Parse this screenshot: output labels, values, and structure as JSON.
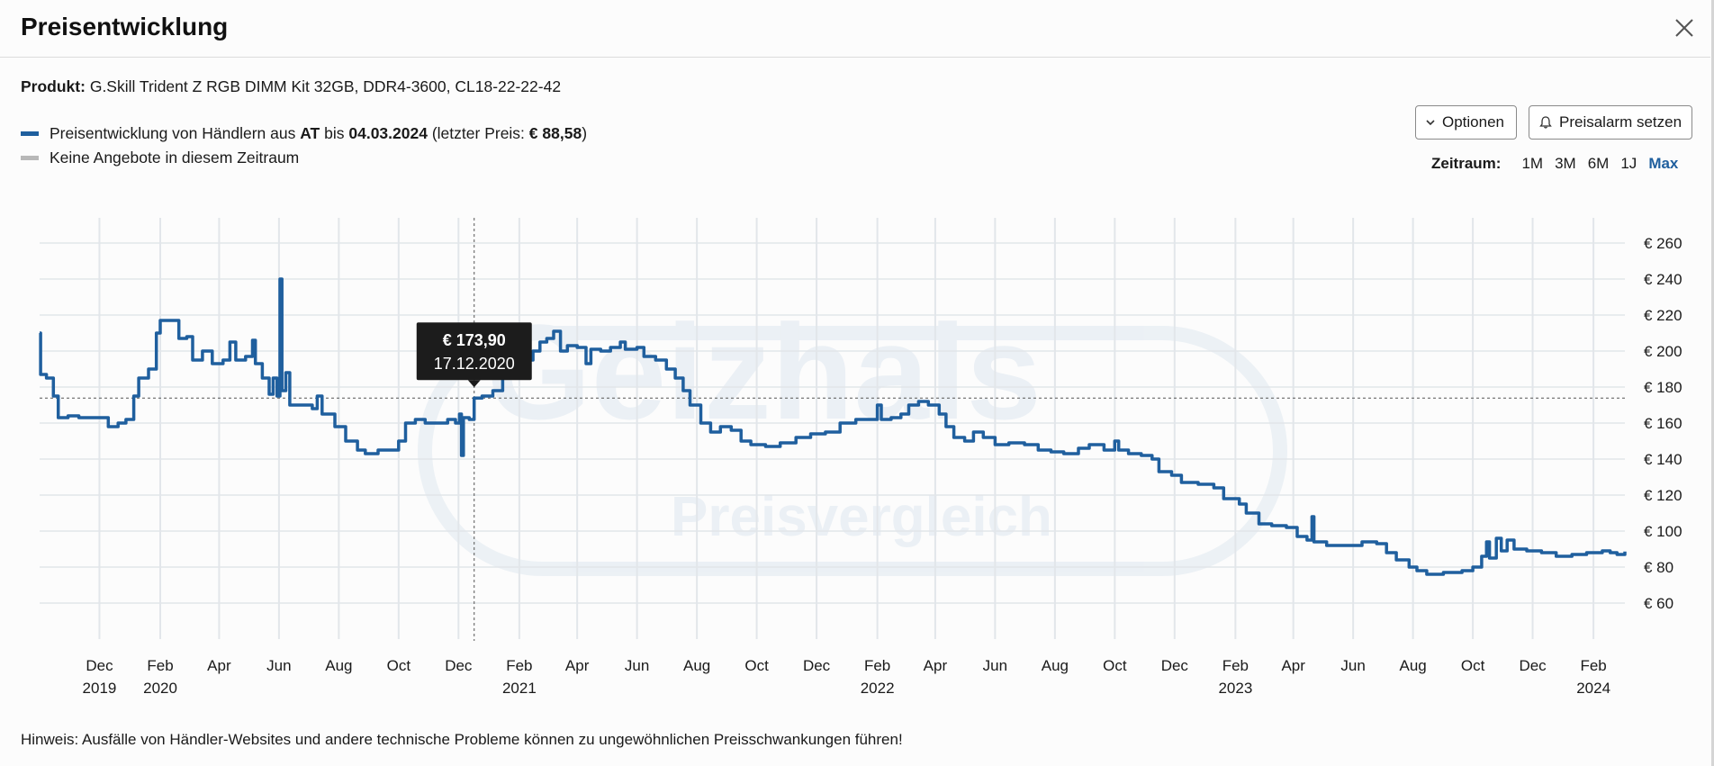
{
  "header": {
    "title": "Preisentwicklung"
  },
  "product": {
    "label": "Produkt:",
    "name": "G.Skill Trident Z RGB DIMM Kit 32GB, DDR4-3600, CL18-22-22-42"
  },
  "legend": {
    "line1_prefix": "Preisentwicklung von Händlern aus ",
    "country": "AT",
    "line1_mid": " bis ",
    "date": "04.03.2024",
    "line1_paren_open": " (letzter Preis: ",
    "last_price": "€ 88,58",
    "line1_paren_close": ")",
    "line2": "Keine Angebote in diesem Zeitraum",
    "colors": {
      "price_line": "#1f5f9e",
      "no_offers": "#b8b8b8"
    }
  },
  "buttons": {
    "options_label": "Optionen",
    "alarm_label": "Preisalarm setzen"
  },
  "range": {
    "label": "Zeitraum:",
    "options": [
      "1M",
      "3M",
      "6M",
      "1J",
      "Max"
    ],
    "active": "Max"
  },
  "tooltip": {
    "price": "€ 173,90",
    "date": "17.12.2020"
  },
  "watermark": {
    "brand": "Geizhals",
    "sub": "Preisvergleich"
  },
  "hint": "Hinweis: Ausfälle von Händler-Websites und andere technische Probleme können zu ungewöhnlichen Preisschwankungen führen!",
  "chart_data": {
    "type": "line",
    "series": [
      {
        "values": [
          [
            "2019-10-01",
            210
          ],
          [
            "2019-10-02",
            187
          ],
          [
            "2019-10-08",
            185
          ],
          [
            "2019-10-15",
            175
          ],
          [
            "2019-10-20",
            163
          ],
          [
            "2019-10-30",
            164
          ],
          [
            "2019-11-10",
            163
          ],
          [
            "2019-11-25",
            163
          ],
          [
            "2019-12-05",
            163
          ],
          [
            "2019-12-10",
            158
          ],
          [
            "2019-12-20",
            160
          ],
          [
            "2019-12-28",
            162
          ],
          [
            "2020-01-05",
            175
          ],
          [
            "2020-01-10",
            185
          ],
          [
            "2020-01-20",
            190
          ],
          [
            "2020-01-28",
            210
          ],
          [
            "2020-02-01",
            217
          ],
          [
            "2020-02-12",
            217
          ],
          [
            "2020-02-20",
            207
          ],
          [
            "2020-02-28",
            208
          ],
          [
            "2020-03-05",
            195
          ],
          [
            "2020-03-15",
            200
          ],
          [
            "2020-03-25",
            193
          ],
          [
            "2020-04-05",
            195
          ],
          [
            "2020-04-12",
            205
          ],
          [
            "2020-04-18",
            195
          ],
          [
            "2020-04-28",
            197
          ],
          [
            "2020-05-05",
            206
          ],
          [
            "2020-05-08",
            193
          ],
          [
            "2020-05-15",
            185
          ],
          [
            "2020-05-22",
            176
          ],
          [
            "2020-05-26",
            185
          ],
          [
            "2020-05-30",
            175
          ],
          [
            "2020-06-02",
            240
          ],
          [
            "2020-06-04",
            178
          ],
          [
            "2020-06-08",
            188
          ],
          [
            "2020-06-12",
            170
          ],
          [
            "2020-06-25",
            170
          ],
          [
            "2020-07-05",
            168
          ],
          [
            "2020-07-10",
            175
          ],
          [
            "2020-07-15",
            165
          ],
          [
            "2020-07-28",
            158
          ],
          [
            "2020-08-08",
            150
          ],
          [
            "2020-08-20",
            145
          ],
          [
            "2020-08-28",
            143
          ],
          [
            "2020-09-10",
            145
          ],
          [
            "2020-09-25",
            145
          ],
          [
            "2020-10-01",
            150
          ],
          [
            "2020-10-08",
            160
          ],
          [
            "2020-10-18",
            162
          ],
          [
            "2020-10-28",
            160
          ],
          [
            "2020-11-10",
            160
          ],
          [
            "2020-11-20",
            162
          ],
          [
            "2020-11-28",
            160
          ],
          [
            "2020-12-02",
            165
          ],
          [
            "2020-12-04",
            142
          ],
          [
            "2020-12-06",
            163
          ],
          [
            "2020-12-12",
            162
          ],
          [
            "2020-12-17",
            173.9
          ],
          [
            "2020-12-25",
            175
          ],
          [
            "2021-01-05",
            178
          ],
          [
            "2021-01-15",
            185
          ],
          [
            "2021-01-25",
            190
          ],
          [
            "2021-02-05",
            195
          ],
          [
            "2021-02-15",
            200
          ],
          [
            "2021-02-22",
            205
          ],
          [
            "2021-03-01",
            207
          ],
          [
            "2021-03-08",
            211
          ],
          [
            "2021-03-15",
            200
          ],
          [
            "2021-03-22",
            203
          ],
          [
            "2021-04-01",
            202
          ],
          [
            "2021-04-10",
            193
          ],
          [
            "2021-04-15",
            201
          ],
          [
            "2021-04-25",
            200
          ],
          [
            "2021-05-05",
            202
          ],
          [
            "2021-05-15",
            205
          ],
          [
            "2021-05-20",
            201
          ],
          [
            "2021-06-01",
            202
          ],
          [
            "2021-06-08",
            197
          ],
          [
            "2021-06-20",
            195
          ],
          [
            "2021-07-01",
            190
          ],
          [
            "2021-07-10",
            185
          ],
          [
            "2021-07-18",
            178
          ],
          [
            "2021-07-25",
            170
          ],
          [
            "2021-08-05",
            160
          ],
          [
            "2021-08-15",
            155
          ],
          [
            "2021-08-25",
            158
          ],
          [
            "2021-09-05",
            156
          ],
          [
            "2021-09-15",
            150
          ],
          [
            "2021-09-25",
            148
          ],
          [
            "2021-10-10",
            147
          ],
          [
            "2021-10-25",
            149
          ],
          [
            "2021-11-10",
            152
          ],
          [
            "2021-11-25",
            154
          ],
          [
            "2021-12-10",
            155
          ],
          [
            "2021-12-25",
            160
          ],
          [
            "2022-01-10",
            162
          ],
          [
            "2022-01-25",
            162
          ],
          [
            "2022-02-01",
            170
          ],
          [
            "2022-02-05",
            162
          ],
          [
            "2022-02-15",
            163
          ],
          [
            "2022-02-25",
            165
          ],
          [
            "2022-03-05",
            170
          ],
          [
            "2022-03-15",
            172
          ],
          [
            "2022-03-25",
            170
          ],
          [
            "2022-04-05",
            165
          ],
          [
            "2022-04-12",
            158
          ],
          [
            "2022-04-20",
            152
          ],
          [
            "2022-05-01",
            150
          ],
          [
            "2022-05-10",
            155
          ],
          [
            "2022-05-20",
            152
          ],
          [
            "2022-06-01",
            148
          ],
          [
            "2022-06-15",
            149
          ],
          [
            "2022-07-01",
            148
          ],
          [
            "2022-07-15",
            145
          ],
          [
            "2022-07-28",
            144
          ],
          [
            "2022-08-10",
            143
          ],
          [
            "2022-08-25",
            146
          ],
          [
            "2022-09-05",
            148
          ],
          [
            "2022-09-20",
            145
          ],
          [
            "2022-10-01",
            150
          ],
          [
            "2022-10-05",
            145
          ],
          [
            "2022-10-15",
            143
          ],
          [
            "2022-10-28",
            142
          ],
          [
            "2022-11-08",
            140
          ],
          [
            "2022-11-15",
            133
          ],
          [
            "2022-11-28",
            131
          ],
          [
            "2022-12-08",
            127
          ],
          [
            "2022-12-25",
            126
          ],
          [
            "2023-01-10",
            124
          ],
          [
            "2023-01-20",
            118
          ],
          [
            "2023-02-05",
            115
          ],
          [
            "2023-02-12",
            110
          ],
          [
            "2023-02-25",
            104
          ],
          [
            "2023-03-10",
            103
          ],
          [
            "2023-03-25",
            102
          ],
          [
            "2023-04-05",
            97
          ],
          [
            "2023-04-15",
            95
          ],
          [
            "2023-04-20",
            108
          ],
          [
            "2023-04-22",
            94
          ],
          [
            "2023-05-05",
            92
          ],
          [
            "2023-05-25",
            92
          ],
          [
            "2023-06-10",
            94
          ],
          [
            "2023-06-25",
            93
          ],
          [
            "2023-07-05",
            88
          ],
          [
            "2023-07-15",
            84
          ],
          [
            "2023-07-28",
            80
          ],
          [
            "2023-08-05",
            78
          ],
          [
            "2023-08-15",
            76
          ],
          [
            "2023-09-01",
            77
          ],
          [
            "2023-09-20",
            78
          ],
          [
            "2023-10-01",
            80
          ],
          [
            "2023-10-10",
            86
          ],
          [
            "2023-10-15",
            94
          ],
          [
            "2023-10-18",
            85
          ],
          [
            "2023-10-25",
            96
          ],
          [
            "2023-10-30",
            89
          ],
          [
            "2023-11-05",
            95
          ],
          [
            "2023-11-12",
            90
          ],
          [
            "2023-11-25",
            89
          ],
          [
            "2023-12-10",
            88
          ],
          [
            "2023-12-25",
            86
          ],
          [
            "2024-01-10",
            87
          ],
          [
            "2024-01-25",
            88
          ],
          [
            "2024-02-10",
            89
          ],
          [
            "2024-02-18",
            88
          ],
          [
            "2024-02-25",
            87
          ],
          [
            "2024-03-03",
            87
          ],
          [
            "2024-03-04",
            88.58
          ]
        ]
      }
    ],
    "x_axis": {
      "min": "2019-10-01",
      "max": "2024-03-04",
      "ticks": [
        {
          "date": "2019-12-01",
          "label": "Dec",
          "year": "2019"
        },
        {
          "date": "2020-02-01",
          "label": "Feb",
          "year": "2020"
        },
        {
          "date": "2020-04-01",
          "label": "Apr"
        },
        {
          "date": "2020-06-01",
          "label": "Jun"
        },
        {
          "date": "2020-08-01",
          "label": "Aug"
        },
        {
          "date": "2020-10-01",
          "label": "Oct"
        },
        {
          "date": "2020-12-01",
          "label": "Dec"
        },
        {
          "date": "2021-02-01",
          "label": "Feb",
          "year": "2021"
        },
        {
          "date": "2021-04-01",
          "label": "Apr"
        },
        {
          "date": "2021-06-01",
          "label": "Jun"
        },
        {
          "date": "2021-08-01",
          "label": "Aug"
        },
        {
          "date": "2021-10-01",
          "label": "Oct"
        },
        {
          "date": "2021-12-01",
          "label": "Dec"
        },
        {
          "date": "2022-02-01",
          "label": "Feb",
          "year": "2022"
        },
        {
          "date": "2022-04-01",
          "label": "Apr"
        },
        {
          "date": "2022-06-01",
          "label": "Jun"
        },
        {
          "date": "2022-08-01",
          "label": "Aug"
        },
        {
          "date": "2022-10-01",
          "label": "Oct"
        },
        {
          "date": "2022-12-01",
          "label": "Dec"
        },
        {
          "date": "2023-02-01",
          "label": "Feb",
          "year": "2023"
        },
        {
          "date": "2023-04-01",
          "label": "Apr"
        },
        {
          "date": "2023-06-01",
          "label": "Jun"
        },
        {
          "date": "2023-08-01",
          "label": "Aug"
        },
        {
          "date": "2023-10-01",
          "label": "Oct"
        },
        {
          "date": "2023-12-01",
          "label": "Dec"
        },
        {
          "date": "2024-02-01",
          "label": "Feb",
          "year": "2024"
        }
      ]
    },
    "y_axis": {
      "min": 50,
      "max": 270,
      "ticks": [
        60,
        80,
        100,
        120,
        140,
        160,
        180,
        200,
        220,
        240,
        260
      ],
      "tick_labels": [
        "€ 60",
        "€ 80",
        "€ 100",
        "€ 120",
        "€ 140",
        "€ 160",
        "€ 180",
        "€ 200",
        "€ 220",
        "€ 240",
        "€ 260"
      ],
      "position": "right"
    },
    "grid": true,
    "crosshair": {
      "date": "2020-12-17",
      "value": 173.9
    }
  }
}
